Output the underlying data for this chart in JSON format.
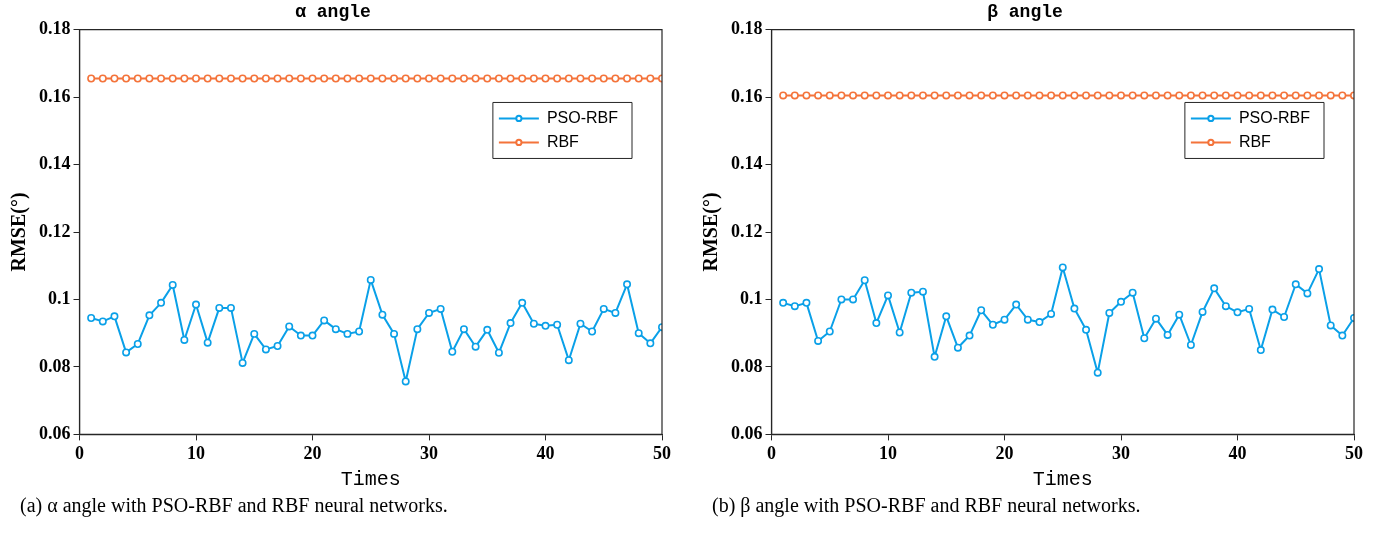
{
  "chart_data": [
    {
      "type": "line",
      "title": "α angle",
      "xlabel": "Times",
      "ylabel": "RMSE(°)",
      "x": [
        1,
        2,
        3,
        4,
        5,
        6,
        7,
        8,
        9,
        10,
        11,
        12,
        13,
        14,
        15,
        16,
        17,
        18,
        19,
        20,
        21,
        22,
        23,
        24,
        25,
        26,
        27,
        28,
        29,
        30,
        31,
        32,
        33,
        34,
        35,
        36,
        37,
        38,
        39,
        40,
        41,
        42,
        43,
        44,
        45,
        46,
        47,
        48,
        49,
        50
      ],
      "series": [
        {
          "name": "PSO-RBF",
          "color": "#0aa0e8",
          "values": [
            0.0945,
            0.0935,
            0.095,
            0.0843,
            0.0868,
            0.0953,
            0.099,
            0.1043,
            0.088,
            0.0985,
            0.0872,
            0.0975,
            0.0975,
            0.0812,
            0.0898,
            0.0852,
            0.0862,
            0.092,
            0.0893,
            0.0893,
            0.0938,
            0.0912,
            0.0898,
            0.0905,
            0.1058,
            0.0955,
            0.0898,
            0.0757,
            0.0912,
            0.096,
            0.0972,
            0.0845,
            0.0912,
            0.086,
            0.091,
            0.0842,
            0.093,
            0.099,
            0.0928,
            0.0922,
            0.0925,
            0.082,
            0.0928,
            0.0905,
            0.0972,
            0.096,
            0.1045,
            0.09,
            0.087,
            0.0918
          ]
        },
        {
          "name": "RBF",
          "color": "#f4733a",
          "values": [
            0.1655,
            0.1655,
            0.1655,
            0.1655,
            0.1655,
            0.1655,
            0.1655,
            0.1655,
            0.1655,
            0.1655,
            0.1655,
            0.1655,
            0.1655,
            0.1655,
            0.1655,
            0.1655,
            0.1655,
            0.1655,
            0.1655,
            0.1655,
            0.1655,
            0.1655,
            0.1655,
            0.1655,
            0.1655,
            0.1655,
            0.1655,
            0.1655,
            0.1655,
            0.1655,
            0.1655,
            0.1655,
            0.1655,
            0.1655,
            0.1655,
            0.1655,
            0.1655,
            0.1655,
            0.1655,
            0.1655,
            0.1655,
            0.1655,
            0.1655,
            0.1655,
            0.1655,
            0.1655,
            0.1655,
            0.1655,
            0.1655,
            0.1655
          ]
        }
      ],
      "xlim": [
        0,
        50
      ],
      "xticks": [
        0,
        10,
        20,
        30,
        40,
        50
      ],
      "ylim": [
        0.06,
        0.18
      ],
      "yticks": [
        0.06,
        0.08,
        0.1,
        0.12,
        0.14,
        0.16,
        0.18
      ],
      "grid": false,
      "legend": "top right",
      "marker": "circle",
      "line_style": "solid",
      "annotations": [
        "(a) α angle with PSO-RBF and RBF neural networks."
      ]
    },
    {
      "type": "line",
      "title": "β angle",
      "xlabel": "Times",
      "ylabel": "RMSE(°)",
      "x": [
        1,
        2,
        3,
        4,
        5,
        6,
        7,
        8,
        9,
        10,
        11,
        12,
        13,
        14,
        15,
        16,
        17,
        18,
        19,
        20,
        21,
        22,
        23,
        24,
        25,
        26,
        27,
        28,
        29,
        30,
        31,
        32,
        33,
        34,
        35,
        36,
        37,
        38,
        39,
        40,
        41,
        42,
        43,
        44,
        45,
        46,
        47,
        48,
        49,
        50
      ],
      "series": [
        {
          "name": "PSO-RBF",
          "color": "#0aa0e8",
          "values": [
            0.099,
            0.098,
            0.099,
            0.0877,
            0.0905,
            0.1,
            0.1,
            0.1057,
            0.093,
            0.1012,
            0.0902,
            0.102,
            0.1023,
            0.083,
            0.095,
            0.0857,
            0.0893,
            0.0968,
            0.0925,
            0.094,
            0.0985,
            0.094,
            0.0933,
            0.0957,
            0.1095,
            0.0973,
            0.091,
            0.0783,
            0.096,
            0.0993,
            0.102,
            0.0885,
            0.0943,
            0.0895,
            0.0955,
            0.0865,
            0.0963,
            0.1033,
            0.098,
            0.0962,
            0.0972,
            0.085,
            0.097,
            0.0948,
            0.1045,
            0.1018,
            0.109,
            0.0923,
            0.0893,
            0.0945
          ]
        },
        {
          "name": "RBF",
          "color": "#f4733a",
          "values": [
            0.1605,
            0.1605,
            0.1605,
            0.1605,
            0.1605,
            0.1605,
            0.1605,
            0.1605,
            0.1605,
            0.1605,
            0.1605,
            0.1605,
            0.1605,
            0.1605,
            0.1605,
            0.1605,
            0.1605,
            0.1605,
            0.1605,
            0.1605,
            0.1605,
            0.1605,
            0.1605,
            0.1605,
            0.1605,
            0.1605,
            0.1605,
            0.1605,
            0.1605,
            0.1605,
            0.1605,
            0.1605,
            0.1605,
            0.1605,
            0.1605,
            0.1605,
            0.1605,
            0.1605,
            0.1605,
            0.1605,
            0.1605,
            0.1605,
            0.1605,
            0.1605,
            0.1605,
            0.1605,
            0.1605,
            0.1605,
            0.1605,
            0.1605
          ]
        }
      ],
      "xlim": [
        0,
        50
      ],
      "xticks": [
        0,
        10,
        20,
        30,
        40,
        50
      ],
      "ylim": [
        0.06,
        0.18
      ],
      "yticks": [
        0.06,
        0.08,
        0.1,
        0.12,
        0.14,
        0.16,
        0.18
      ],
      "grid": false,
      "legend": "top right",
      "marker": "circle",
      "line_style": "solid",
      "annotations": [
        "(b) β angle with PSO-RBF and RBF neural networks."
      ]
    }
  ]
}
